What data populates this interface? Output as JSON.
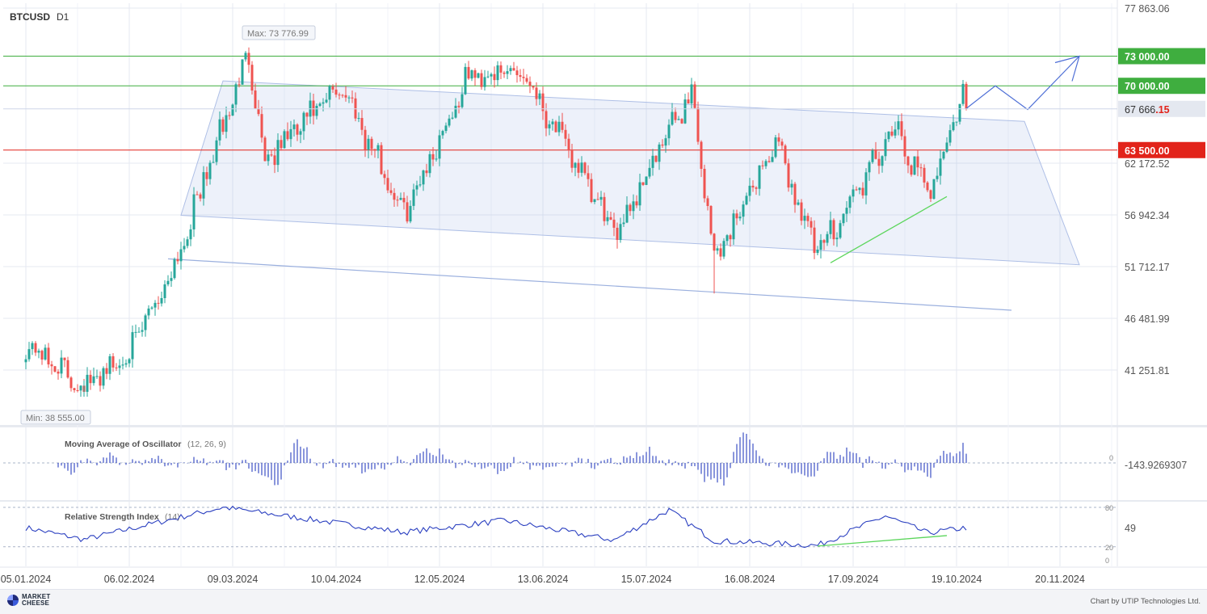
{
  "header": {
    "symbol": "BTCUSD",
    "timeframe": "D1"
  },
  "footer": {
    "brand_line1": "MARKET",
    "brand_line2": "CHEESE",
    "credit": "Chart by UTIP Technologies Ltd."
  },
  "colors": {
    "up": "#26a69a",
    "down": "#ef5350",
    "support_line": "#3fae3f",
    "resistance_line": "#e2231a",
    "channel": "#7f9fdf",
    "oscillator": "#2a3fc0"
  },
  "chart_data": [
    {
      "type": "candlestick",
      "title": "BTCUSD D1",
      "x_ticks": [
        "05.01.2024",
        "06.02.2024",
        "09.03.2024",
        "10.04.2024",
        "12.05.2024",
        "13.06.2024",
        "15.07.2024",
        "16.08.2024",
        "17.09.2024",
        "19.10.2024",
        "20.11.2024"
      ],
      "y_ticks": [
        "77 863.06",
        "62 172.52",
        "56 942.34",
        "51 712.17",
        "46 481.99",
        "41 251.81"
      ],
      "ylim": [
        35000,
        78000
      ],
      "annotations": {
        "max_label": "Max: 73 776.99",
        "min_label": "Min: 38 555.00"
      },
      "price_levels": [
        {
          "label": "73 000.00",
          "value": 73000,
          "color": "#3fae3f"
        },
        {
          "label": "70 000.00",
          "value": 70000,
          "color": "#3fae3f"
        },
        {
          "label": "63 500.00",
          "value": 63500,
          "color": "#e2231a"
        }
      ],
      "current_price": {
        "main": "67 666",
        "fraction": ".15",
        "value": 67666.15
      },
      "key_points": [
        {
          "date": "05.01.2024",
          "close": 44000
        },
        {
          "date": "23.01.2024",
          "close": 39500
        },
        {
          "date": "06.02.2024",
          "close": 43000
        },
        {
          "date": "20.02.2024",
          "close": 51900
        },
        {
          "date": "14.03.2024",
          "close": 73300
        },
        {
          "date": "19.03.2024",
          "close": 62500
        },
        {
          "date": "12.04.2024",
          "close": 70000
        },
        {
          "date": "01.05.2024",
          "close": 57000
        },
        {
          "date": "21.05.2024",
          "close": 71000
        },
        {
          "date": "07.06.2024",
          "close": 71500
        },
        {
          "date": "05.07.2024",
          "close": 55000
        },
        {
          "date": "29.07.2024",
          "close": 69500
        },
        {
          "date": "05.08.2024",
          "close": 52500
        },
        {
          "date": "24.08.2024",
          "close": 64200
        },
        {
          "date": "06.09.2024",
          "close": 53000
        },
        {
          "date": "30.09.2024",
          "close": 65500
        },
        {
          "date": "10.10.2024",
          "close": 59000
        },
        {
          "date": "21.10.2024",
          "close": 69000
        },
        {
          "date": "22.10.2024",
          "close": 67666.15
        }
      ]
    },
    {
      "type": "bar",
      "title": "Moving Average of Oscillator",
      "params": "(12, 26, 9)",
      "zero_label": "0",
      "value_label": "-143.9269307"
    },
    {
      "type": "line",
      "title": "Relative Strength Index",
      "params": "(14)",
      "levels": [
        "80",
        "20",
        "0"
      ],
      "value_label": "49",
      "key_points": [
        {
          "date": "05.01.2024",
          "value": 49
        },
        {
          "date": "23.01.2024",
          "value": 31
        },
        {
          "date": "06.03.2024",
          "value": 80
        },
        {
          "date": "01.05.2024",
          "value": 42
        },
        {
          "date": "01.06.2024",
          "value": 60
        },
        {
          "date": "05.07.2024",
          "value": 30
        },
        {
          "date": "22.07.2024",
          "value": 76
        },
        {
          "date": "05.08.2024",
          "value": 29
        },
        {
          "date": "06.09.2024",
          "value": 22
        },
        {
          "date": "27.09.2024",
          "value": 67
        },
        {
          "date": "10.10.2024",
          "value": 41
        },
        {
          "date": "22.10.2024",
          "value": 49
        }
      ]
    }
  ]
}
